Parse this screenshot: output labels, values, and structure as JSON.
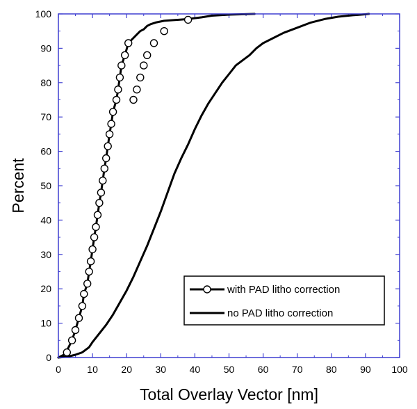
{
  "chart_data": {
    "type": "line",
    "title": "",
    "xlabel": "Total Overlay Vector [nm]",
    "ylabel": "Percent",
    "xlim": [
      0,
      100
    ],
    "ylim": [
      0,
      100
    ],
    "xticks": [
      "0",
      "10",
      "20",
      "30",
      "40",
      "50",
      "60",
      "70",
      "80",
      "90",
      "100"
    ],
    "yticks": [
      "0",
      "10",
      "20",
      "30",
      "40",
      "50",
      "60",
      "70",
      "80",
      "90",
      "100"
    ],
    "grid": false,
    "legend_position": "bottom-right",
    "frame_color": "#3f3fd0",
    "series": [
      {
        "name": "with PAD litho correction",
        "color": "#000000",
        "marker": "open-circle",
        "x": [
          0,
          2,
          2.5,
          4,
          5,
          6,
          7,
          7.5,
          8.5,
          9,
          9.5,
          10,
          10.5,
          11,
          11.5,
          12,
          12.5,
          13,
          13.5,
          14,
          14.5,
          15,
          15.5,
          16,
          17,
          17.5,
          18,
          18.5,
          19.5,
          20.5,
          21,
          22,
          23,
          24,
          25,
          26,
          27,
          28.5,
          31,
          38,
          42,
          45,
          50,
          57.5
        ],
        "y": [
          0,
          1,
          2,
          5,
          8,
          11.5,
          15,
          18.5,
          21.5,
          25,
          28,
          31.5,
          35,
          38,
          41.5,
          45,
          48,
          51.5,
          55,
          58,
          61.5,
          65,
          68,
          71.5,
          75,
          78,
          81.5,
          85,
          88,
          91.5,
          92,
          93,
          94,
          95,
          95.5,
          96.5,
          97,
          97.5,
          98,
          98.5,
          99,
          99.5,
          99.8,
          100
        ],
        "marker_x": [
          2.5,
          4,
          5,
          6,
          7,
          7.5,
          8.5,
          9,
          9.5,
          10,
          10.5,
          11,
          11.5,
          12,
          12.5,
          13,
          13.5,
          14,
          14.5,
          15,
          15.5,
          16,
          17,
          17.5,
          18,
          18.5,
          19.5,
          20.5,
          22,
          23,
          24,
          25,
          26,
          28,
          31,
          38
        ],
        "marker_y": [
          1.5,
          5,
          8,
          11.5,
          15,
          18.5,
          21.5,
          25,
          28,
          31.5,
          35,
          38,
          41.5,
          45,
          48,
          51.5,
          55,
          58,
          61.5,
          65,
          68,
          71.5,
          75,
          78,
          81.5,
          85,
          88,
          91.5,
          75,
          78,
          81.5,
          85,
          88,
          91.5,
          95,
          98.3
        ]
      },
      {
        "name": "no PAD litho correction",
        "color": "#000000",
        "marker": "none",
        "x": [
          0,
          3,
          5,
          7,
          9,
          10,
          12,
          14,
          16,
          18,
          20,
          22,
          24,
          26,
          28,
          30,
          32,
          34,
          36,
          38,
          40,
          42,
          44,
          46,
          48,
          50,
          52,
          54,
          56,
          58,
          60,
          63,
          66,
          70,
          74,
          78,
          82,
          86,
          90,
          91
        ],
        "y": [
          0,
          0.3,
          0.8,
          1.5,
          3,
          4.5,
          7,
          9.5,
          12.5,
          16,
          19.5,
          23.5,
          28,
          32.5,
          37.5,
          42.5,
          48,
          53.5,
          58,
          62,
          66.5,
          70.5,
          74,
          77,
          80,
          82.5,
          85,
          86.5,
          88,
          90,
          91.5,
          93,
          94.5,
          96,
          97.5,
          98.5,
          99.2,
          99.6,
          99.9,
          100
        ]
      }
    ]
  }
}
